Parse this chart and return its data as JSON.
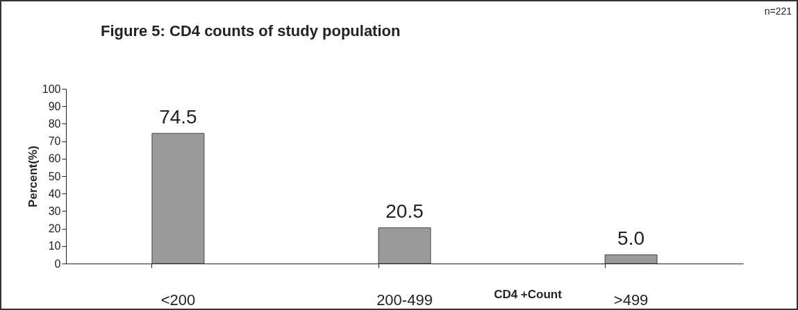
{
  "chart_data": {
    "type": "bar",
    "title": "Figure 5: CD4 counts of study population",
    "xlabel": "CD4 +Count",
    "ylabel": "Percent(%)",
    "annotations": [
      "n=221"
    ],
    "categories": [
      "<200",
      "200-499",
      ">499"
    ],
    "values": [
      74.5,
      20.5,
      5.0
    ],
    "value_labels": [
      "74.5",
      "20.5",
      "5.0"
    ],
    "color": "#9a9a9a",
    "ylim": [
      0,
      100
    ],
    "yticks": [
      0,
      10,
      20,
      30,
      40,
      50,
      60,
      70,
      80,
      90,
      100
    ]
  }
}
